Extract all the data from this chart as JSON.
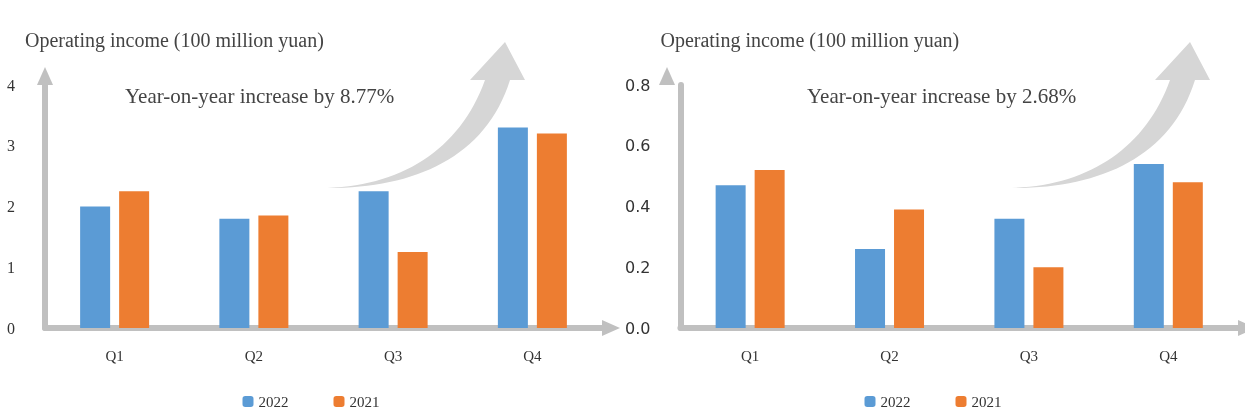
{
  "chart_data": [
    {
      "type": "bar",
      "ylabel": "Operating income (100 million yuan)",
      "annotations": [
        "Year-on-year increase by 8.77%"
      ],
      "categories": [
        "Q1",
        "Q2",
        "Q3",
        "Q4"
      ],
      "series": [
        {
          "name": "2022",
          "color": "#5b9bd5",
          "values": [
            2.0,
            1.8,
            2.25,
            3.3
          ]
        },
        {
          "name": "2021",
          "color": "#ed7d31",
          "values": [
            2.25,
            1.85,
            1.25,
            3.2
          ]
        }
      ],
      "ylim": [
        0,
        4
      ],
      "yticks": [
        0,
        1,
        2,
        3,
        4
      ],
      "grid": false,
      "legend": "bottom"
    },
    {
      "type": "bar",
      "ylabel": "Operating income (100 million yuan)",
      "annotations": [
        "Year-on-year increase by 2.68%"
      ],
      "categories": [
        "Q1",
        "Q2",
        "Q3",
        "Q4"
      ],
      "series": [
        {
          "name": "2022",
          "color": "#5b9bd5",
          "values": [
            0.47,
            0.26,
            0.36,
            0.54
          ]
        },
        {
          "name": "2021",
          "color": "#ed7d31",
          "values": [
            0.52,
            0.39,
            0.2,
            0.48
          ]
        }
      ],
      "ylim": [
        0,
        0.8
      ],
      "yticks": [
        {
          "value": 0,
          "label": "0.0"
        },
        0.2,
        0.4,
        0.6,
        0.8
      ],
      "grid": false,
      "legend": "bottom"
    }
  ]
}
